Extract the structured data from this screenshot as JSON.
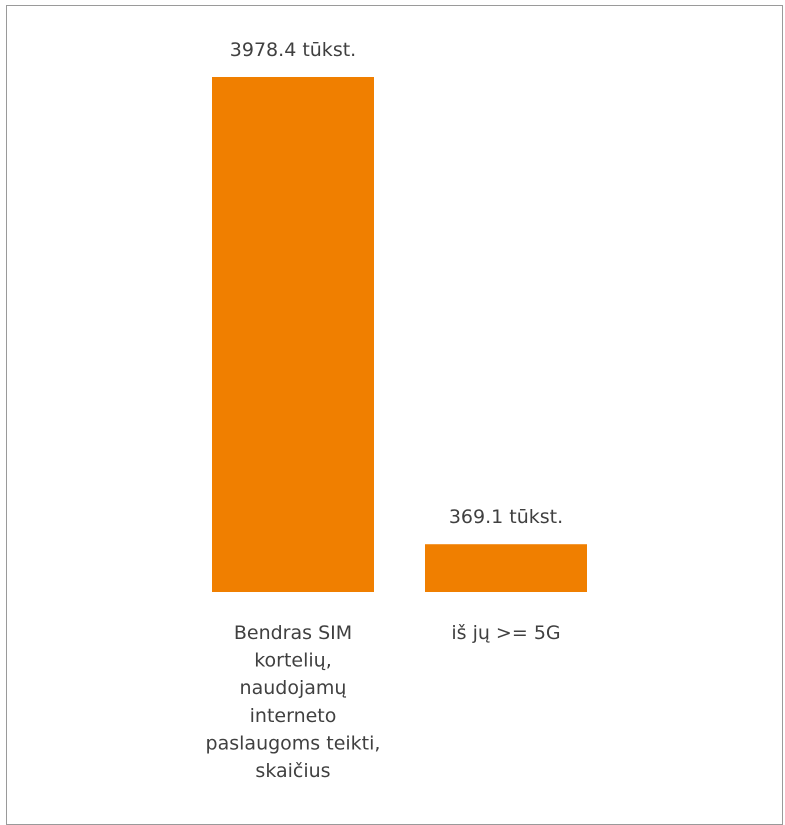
{
  "chart_data": {
    "type": "bar",
    "categories": [
      [
        "Bendras SIM",
        "kortelių,",
        "naudojamų",
        "interneto",
        "paslaugoms teikti,",
        "skaičius"
      ],
      [
        "iš jų >= 5G"
      ]
    ],
    "values": [
      3978.4,
      369.1
    ],
    "data_labels": [
      "3978.4 tūkst.",
      "369.1 tūkst."
    ],
    "ylim": [
      0,
      3978.4
    ],
    "grid": false,
    "legend": "none",
    "bar_color": "#F07F00"
  }
}
